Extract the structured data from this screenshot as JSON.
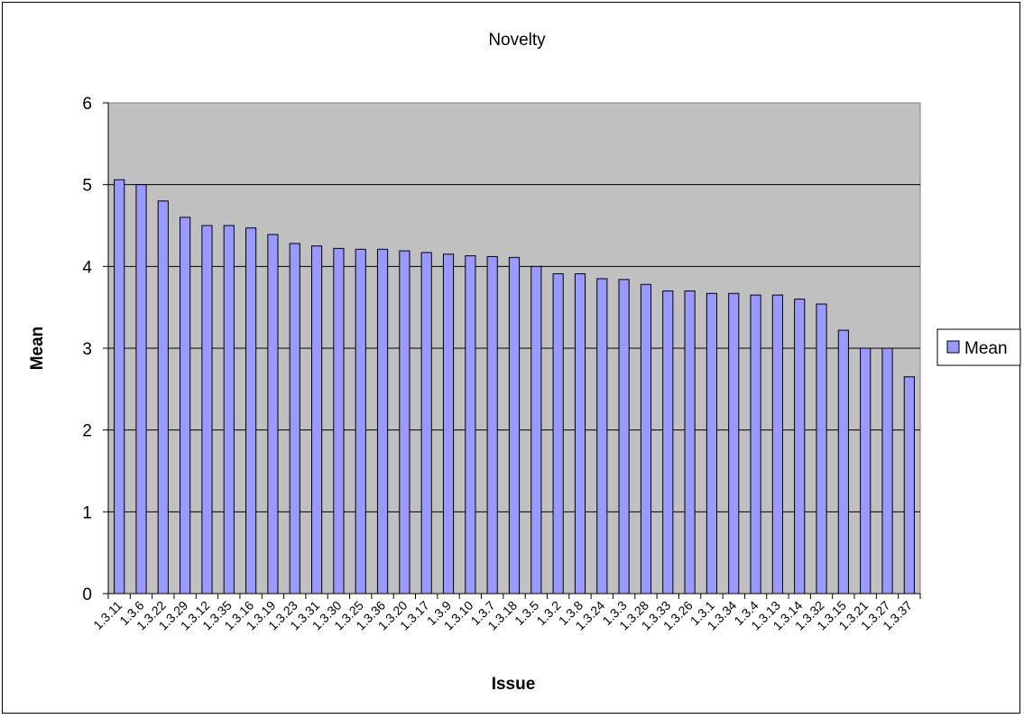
{
  "chart_data": {
    "type": "bar",
    "title": "Novelty",
    "xlabel": "Issue",
    "ylabel": "Mean",
    "ylim": [
      0,
      6
    ],
    "yticks": [
      0,
      1,
      2,
      3,
      4,
      5,
      6
    ],
    "grid": true,
    "legend_position": "right",
    "categories": [
      "1.3.11",
      "1.3.6",
      "1.3.22",
      "1.3.29",
      "1.3.12",
      "1.3.35",
      "1.3.16",
      "1.3.19",
      "1.3.23",
      "1.3.31",
      "1.3.30",
      "1.3.25",
      "1.3.36",
      "1.3.20",
      "1.3.17",
      "1.3.9",
      "1.3.10",
      "1.3.7",
      "1.3.18",
      "1.3.5",
      "1.3.2",
      "1.3.8",
      "1.3.24",
      "1.3.3",
      "1.3.28",
      "1.3.33",
      "1.3.26",
      "1.3.1",
      "1.3.34",
      "1.3.4",
      "1.3.13",
      "1.3.14",
      "1.3.32",
      "1.3.15",
      "1.3.21",
      "1.3.27",
      "1.3.37"
    ],
    "series": [
      {
        "name": "Mean",
        "color": "#9999ff",
        "values": [
          5.06,
          5.0,
          4.8,
          4.6,
          4.5,
          4.5,
          4.47,
          4.39,
          4.28,
          4.25,
          4.22,
          4.21,
          4.21,
          4.19,
          4.17,
          4.15,
          4.13,
          4.12,
          4.11,
          4.0,
          3.91,
          3.91,
          3.85,
          3.84,
          3.78,
          3.7,
          3.7,
          3.67,
          3.67,
          3.65,
          3.65,
          3.6,
          3.54,
          3.22,
          3.0,
          3.0,
          2.65
        ]
      }
    ],
    "plot_background": "#c0c0c0",
    "bar_edge_color": "#000000"
  }
}
